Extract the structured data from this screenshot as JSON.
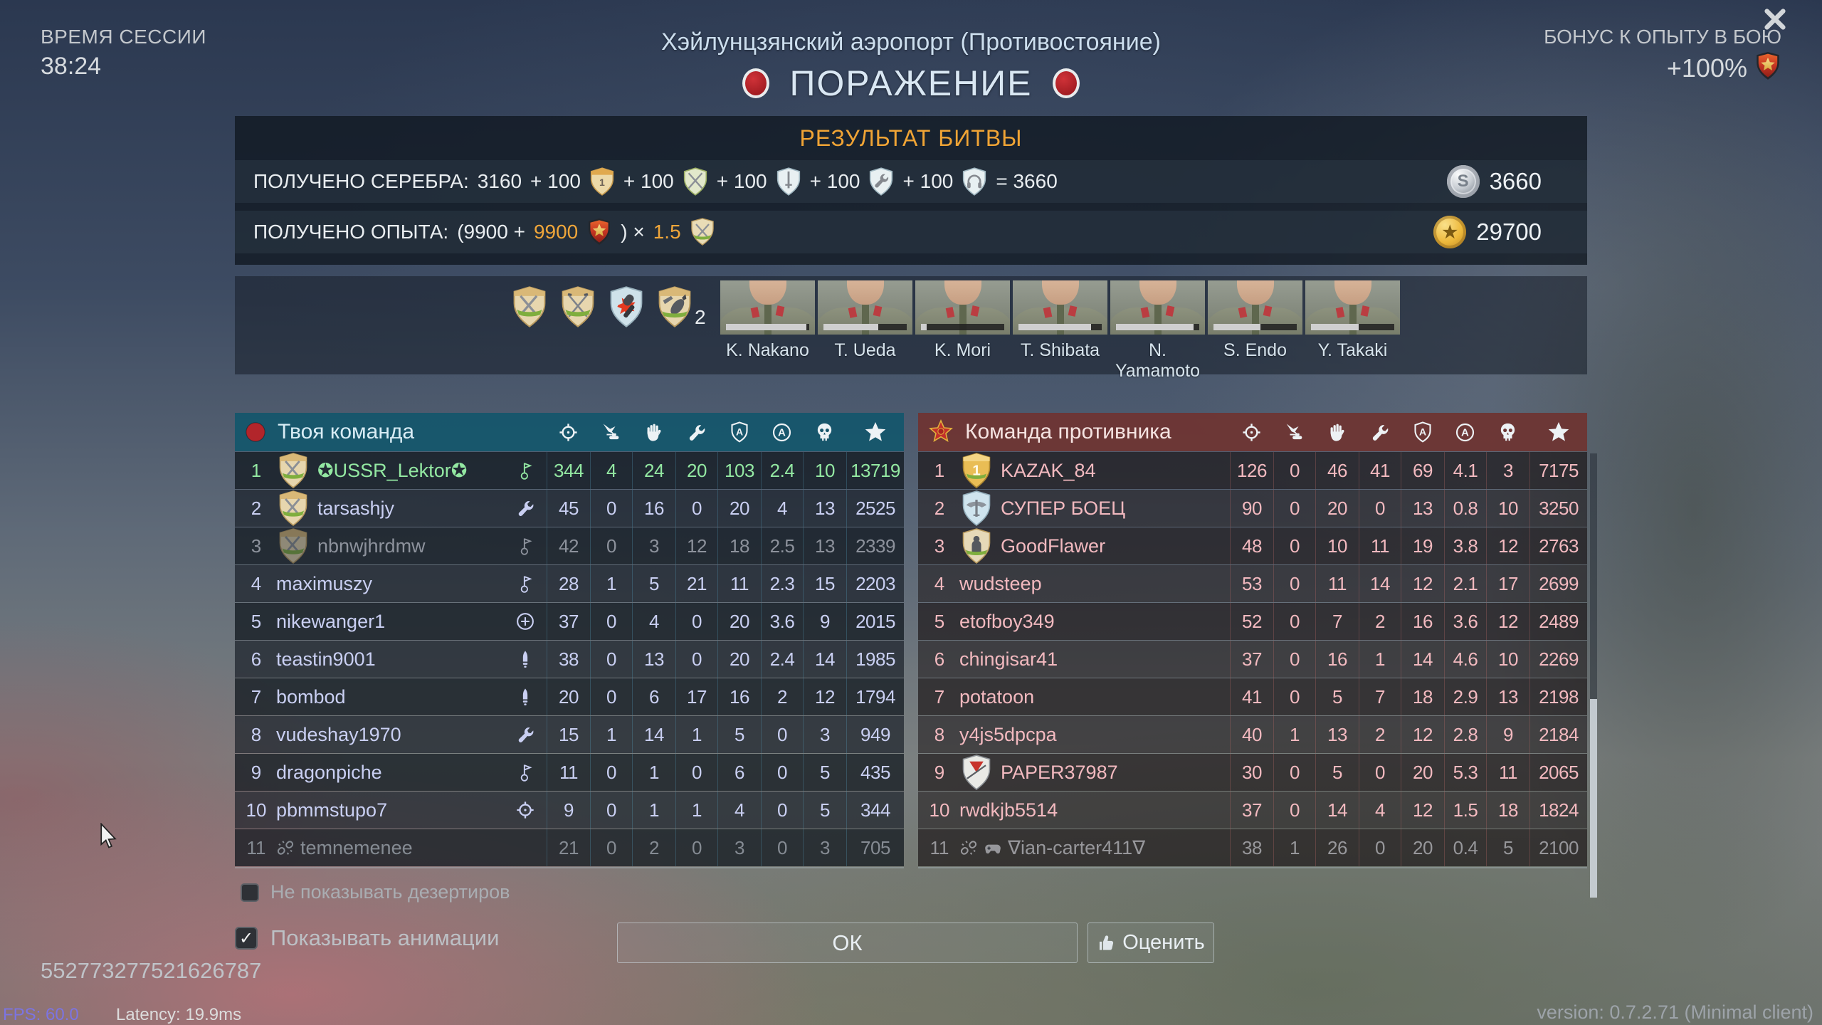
{
  "header": {
    "session_time_label": "ВРЕМЯ СЕССИИ",
    "session_time_value": "38:24",
    "map_title": "Хэйлунцзянский аэропорт (Противостояние)",
    "result_title": "ПОРАЖЕНИЕ",
    "bonus_label": "БОНУС К ОПЫТУ В БОЮ",
    "bonus_value": "+100%"
  },
  "battle_result": {
    "title": "РЕЗУЛЬТАТ БИТВЫ",
    "silver": {
      "label": "ПОЛУЧЕНО СЕРЕБРА:",
      "parts": [
        {
          "t": "3160"
        },
        {
          "t": "+ 100"
        },
        {
          "icon": "mini-hand1-medal-icon"
        },
        {
          "t": "+ 100"
        },
        {
          "icon": "mini-swords-medal-icon"
        },
        {
          "t": "+ 100"
        },
        {
          "icon": "mini-sword-medal-icon"
        },
        {
          "t": "+ 100"
        },
        {
          "icon": "mini-wrench-medal-icon"
        },
        {
          "t": "+ 100"
        },
        {
          "icon": "mini-headphones-medal-icon"
        },
        {
          "t": "= 3660"
        }
      ],
      "total": "3660"
    },
    "experience": {
      "label": "ПОЛУЧЕНО ОПЫТА:",
      "parts": [
        {
          "t": "(9900 +"
        },
        {
          "t": "9900",
          "hl": true
        },
        {
          "icon": "premium-shield-icon"
        },
        {
          "t": ") ×"
        },
        {
          "t": "1.5",
          "hl": true
        },
        {
          "icon": "talisman-shield-icon"
        }
      ],
      "total": "29700"
    }
  },
  "awards": {
    "medals": [
      {
        "icon": "medal-swords-award-icon",
        "count": ""
      },
      {
        "icon": "medal-rifles-award-icon",
        "count": ""
      },
      {
        "icon": "medal-grenade-award-icon",
        "count": ""
      },
      {
        "icon": "medal-bomb-award-icon",
        "count": "2"
      }
    ]
  },
  "crew": {
    "members": [
      {
        "name": "K. Nakano",
        "xp_percent": 97
      },
      {
        "name": "T. Ueda",
        "xp_percent": 66
      },
      {
        "name": "K. Mori",
        "xp_percent": 7
      },
      {
        "name": "T. Shibata",
        "xp_percent": 87
      },
      {
        "name": "N. Yamamoto",
        "xp_percent": 93
      },
      {
        "name": "S. Endo",
        "xp_percent": 56
      },
      {
        "name": "Y. Takaki",
        "xp_percent": 57
      }
    ]
  },
  "scoreboard": {
    "column_icons": [
      "crosshair-icon",
      "ground-attack-icon",
      "hand-icon",
      "wrench-icon",
      "shield-a-icon",
      "circle-a-icon",
      "skull-icon",
      "star-icon"
    ],
    "left": {
      "title": "Твоя команда",
      "team_icon": "red-circle-icon",
      "rows": [
        {
          "rank": "1",
          "medal_icon": "medal-swords-clan-icon",
          "pre_icons": [],
          "name": "✪USSR_Lektor✪",
          "status_icon": "flag-icon",
          "stats": [
            344,
            4,
            24,
            20,
            103,
            "2.4",
            10,
            13719
          ],
          "state": "self"
        },
        {
          "rank": "2",
          "medal_icon": "medal-swords-clan-icon",
          "pre_icons": [],
          "name": "tarsashjy",
          "status_icon": "wrench-status-icon",
          "stats": [
            45,
            0,
            16,
            0,
            20,
            4,
            13,
            2525
          ],
          "state": "normal"
        },
        {
          "rank": "3",
          "medal_icon": "medal-swords-clan-icon",
          "pre_icons": [],
          "name": "nbnwjhrdmw",
          "status_icon": "flag-icon",
          "stats": [
            42,
            0,
            3,
            12,
            18,
            "2.5",
            13,
            2339
          ],
          "state": "dead"
        },
        {
          "rank": "4",
          "medal_icon": null,
          "pre_icons": [],
          "name": "maximuszy",
          "status_icon": "flag-icon",
          "stats": [
            28,
            1,
            5,
            21,
            11,
            "2.3",
            15,
            2203
          ],
          "state": "normal"
        },
        {
          "rank": "5",
          "medal_icon": null,
          "pre_icons": [],
          "name": "nikewanger1",
          "status_icon": "plus-icon",
          "stats": [
            37,
            0,
            4,
            0,
            20,
            "3.6",
            9,
            2015
          ],
          "state": "normal"
        },
        {
          "rank": "6",
          "medal_icon": null,
          "pre_icons": [],
          "name": "teastin9001",
          "status_icon": "shell-icon",
          "stats": [
            38,
            0,
            13,
            0,
            20,
            "2.4",
            14,
            1985
          ],
          "state": "normal"
        },
        {
          "rank": "7",
          "medal_icon": null,
          "pre_icons": [],
          "name": "bombod",
          "status_icon": "shell-icon",
          "stats": [
            20,
            0,
            6,
            17,
            16,
            2,
            12,
            1794
          ],
          "state": "normal"
        },
        {
          "rank": "8",
          "medal_icon": null,
          "pre_icons": [],
          "name": "vudeshay1970",
          "status_icon": "wrench-status-icon",
          "stats": [
            15,
            1,
            14,
            1,
            5,
            0,
            3,
            949
          ],
          "state": "normal"
        },
        {
          "rank": "9",
          "medal_icon": null,
          "pre_icons": [],
          "name": "dragonpiche",
          "status_icon": "flag-icon",
          "stats": [
            11,
            0,
            1,
            0,
            6,
            0,
            5,
            435
          ],
          "state": "normal"
        },
        {
          "rank": "10",
          "medal_icon": null,
          "pre_icons": [],
          "name": "pbmmstupo7",
          "status_icon": "crosshair-icon",
          "stats": [
            9,
            0,
            1,
            1,
            4,
            0,
            5,
            344
          ],
          "state": "normal"
        },
        {
          "rank": "11",
          "medal_icon": null,
          "pre_icons": [
            "broken-link-icon"
          ],
          "name": "temnemenee",
          "status_icon": null,
          "stats": [
            21,
            0,
            2,
            0,
            3,
            0,
            3,
            705
          ],
          "state": "deserter"
        }
      ]
    },
    "right": {
      "title": "Команда противника",
      "team_icon": "red-star-icon",
      "rows": [
        {
          "rank": "1",
          "medal_icon": "medal-gold1-icon",
          "pre_icons": [],
          "name": "KAZAK_84",
          "status_icon": null,
          "stats": [
            126,
            0,
            46,
            41,
            69,
            "4.1",
            3,
            7175
          ],
          "state": "normal"
        },
        {
          "rank": "2",
          "medal_icon": "medal-wings-icon",
          "pre_icons": [],
          "name": "СУПЕР БОЕЦ",
          "status_icon": null,
          "stats": [
            90,
            0,
            20,
            0,
            13,
            "0.8",
            10,
            3250
          ],
          "state": "normal"
        },
        {
          "rank": "3",
          "medal_icon": "medal-soldier-icon",
          "pre_icons": [],
          "name": "GoodFlawer",
          "status_icon": null,
          "stats": [
            48,
            0,
            10,
            11,
            19,
            "3.8",
            12,
            2763
          ],
          "state": "normal"
        },
        {
          "rank": "4",
          "medal_icon": null,
          "pre_icons": [],
          "name": "wudsteep",
          "status_icon": null,
          "stats": [
            53,
            0,
            11,
            14,
            12,
            "2.1",
            17,
            2699
          ],
          "state": "normal"
        },
        {
          "rank": "5",
          "medal_icon": null,
          "pre_icons": [],
          "name": "etofboy349",
          "status_icon": null,
          "stats": [
            52,
            0,
            7,
            2,
            16,
            "3.6",
            12,
            2489
          ],
          "state": "normal"
        },
        {
          "rank": "6",
          "medal_icon": null,
          "pre_icons": [],
          "name": "chingisar41",
          "status_icon": null,
          "stats": [
            37,
            0,
            16,
            1,
            14,
            "4.6",
            10,
            2269
          ],
          "state": "normal"
        },
        {
          "rank": "7",
          "medal_icon": null,
          "pre_icons": [],
          "name": "potatoon",
          "status_icon": null,
          "stats": [
            41,
            0,
            5,
            7,
            18,
            "2.9",
            13,
            2198
          ],
          "state": "normal"
        },
        {
          "rank": "8",
          "medal_icon": null,
          "pre_icons": [],
          "name": "y4js5dpcpa",
          "status_icon": null,
          "stats": [
            40,
            1,
            13,
            2,
            12,
            "2.8",
            9,
            2184
          ],
          "state": "normal"
        },
        {
          "rank": "9",
          "medal_icon": "medal-clan-icon",
          "pre_icons": [],
          "name": "PAPER37987",
          "status_icon": null,
          "stats": [
            30,
            0,
            5,
            0,
            20,
            "5.3",
            11,
            2065
          ],
          "state": "normal"
        },
        {
          "rank": "10",
          "medal_icon": null,
          "pre_icons": [],
          "name": "rwdkjb5514",
          "status_icon": null,
          "stats": [
            37,
            0,
            14,
            4,
            12,
            "1.5",
            18,
            1824
          ],
          "state": "normal"
        },
        {
          "rank": "11",
          "medal_icon": null,
          "pre_icons": [
            "broken-link-icon",
            "gamepad-icon"
          ],
          "name": "∇ian-carter411∇",
          "status_icon": null,
          "stats": [
            38,
            1,
            26,
            0,
            20,
            "0.4",
            5,
            2100
          ],
          "state": "deserter"
        }
      ]
    }
  },
  "footer": {
    "hide_deserters_label": "Не показывать дезертиров",
    "hide_deserters_checked": false,
    "show_animations_label": "Показывать анимации",
    "show_animations_checked": true,
    "check_glyph": "✓",
    "ok_label": "ОК",
    "rate_label": "Оценить",
    "session_id": "552773277521626787",
    "fps": "FPS: 60.0",
    "latency": "Latency: 19.9ms",
    "version": "version: 0.7.2.71 (Minimal client)"
  },
  "colors": {
    "accent_orange": "#f0a435",
    "ally_header": "#15566b",
    "enemy_header": "#6e3533",
    "self_green": "#93e8a2",
    "ally_text": "#c9cff2",
    "enemy_text": "#f2b9bf",
    "defeat_red": "#b2252b"
  }
}
